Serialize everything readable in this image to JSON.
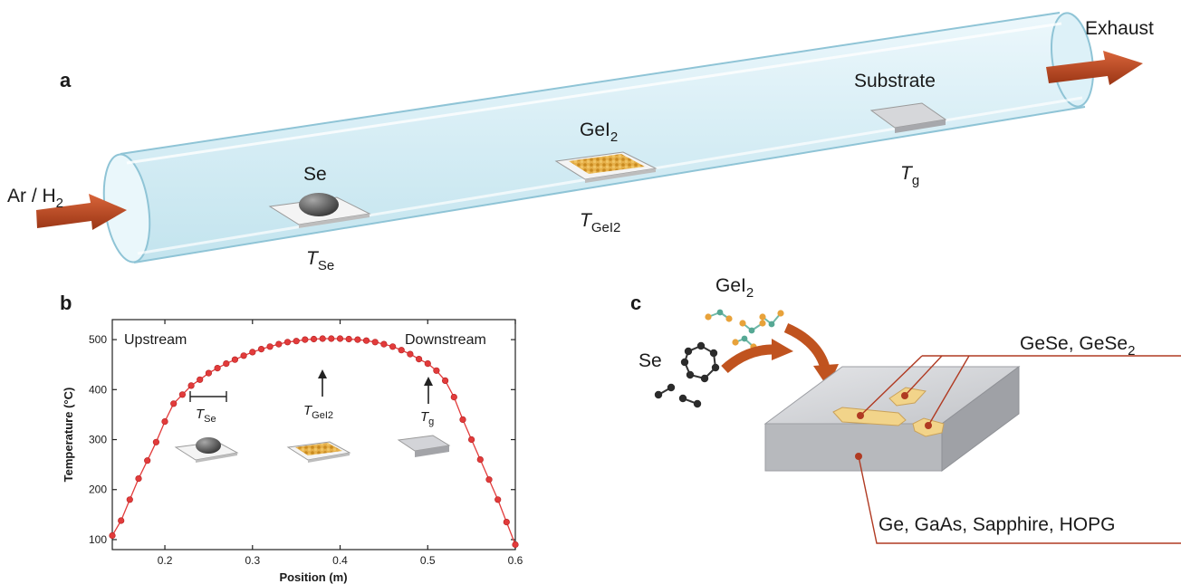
{
  "panel_a": {
    "letter": "a",
    "inlet": {
      "base": "Ar / H",
      "sub": "2"
    },
    "exhaust": "Exhaust",
    "se": {
      "label": "Se",
      "temp_main": "T",
      "temp_sub": "Se"
    },
    "gei2": {
      "label_base": "GeI",
      "label_sub": "2",
      "temp_main": "T",
      "temp_sub": "GeI2"
    },
    "substrate": {
      "label": "Substrate",
      "temp_main": "T",
      "temp_sub": "g"
    },
    "colors": {
      "tube": "#cfeaf3",
      "arrow": "#b5431f",
      "precursor": "#d9a035",
      "substrate": "#c9c9cc"
    }
  },
  "panel_b": {
    "letter": "b",
    "chart_data": {
      "type": "line",
      "xlabel": "Position (m)",
      "ylabel": "Temperature (°C)",
      "xlim": [
        0.14,
        0.6
      ],
      "ylim": [
        80,
        540
      ],
      "xticks": [
        "0.2",
        "0.3",
        "0.4",
        "0.5",
        "0.6"
      ],
      "yticks": [
        "100",
        "200",
        "300",
        "400",
        "500"
      ],
      "series": [
        {
          "color": "#e23b3b",
          "x": [
            0.14,
            0.15,
            0.16,
            0.17,
            0.18,
            0.19,
            0.2,
            0.21,
            0.22,
            0.23,
            0.24,
            0.25,
            0.26,
            0.27,
            0.28,
            0.29,
            0.3,
            0.31,
            0.32,
            0.33,
            0.34,
            0.35,
            0.36,
            0.37,
            0.38,
            0.39,
            0.4,
            0.41,
            0.42,
            0.43,
            0.44,
            0.45,
            0.46,
            0.47,
            0.48,
            0.49,
            0.5,
            0.51,
            0.52,
            0.53,
            0.54,
            0.55,
            0.56,
            0.57,
            0.58,
            0.59,
            0.6
          ],
          "y": [
            108,
            138,
            180,
            222,
            258,
            295,
            336,
            372,
            390,
            408,
            420,
            433,
            443,
            452,
            460,
            468,
            475,
            481,
            486,
            491,
            495,
            497,
            500,
            501,
            502,
            502,
            502,
            501,
            500,
            498,
            495,
            491,
            486,
            479,
            471,
            461,
            452,
            438,
            418,
            385,
            340,
            300,
            260,
            220,
            180,
            135,
            90
          ]
        }
      ],
      "annotations": {
        "upstream": "Upstream",
        "downstream": "Downstream",
        "tse": {
          "main": "T",
          "sub": "Se"
        },
        "tgei2": {
          "main": "T",
          "sub": "GeI2"
        },
        "tg": {
          "main": "T",
          "sub": "g"
        }
      }
    }
  },
  "panel_c": {
    "letter": "c",
    "gei2": {
      "base": "GeI",
      "sub": "2"
    },
    "se": "Se",
    "product": {
      "base": "GeSe, GeSe",
      "sub": "2"
    },
    "substrates": "Ge, GaAs, Sapphire, HOPG",
    "colors": {
      "arrow": "#c0531f",
      "flake": "#f2d48a",
      "leader": "#b03a22",
      "block": "#c5c7cb"
    }
  }
}
